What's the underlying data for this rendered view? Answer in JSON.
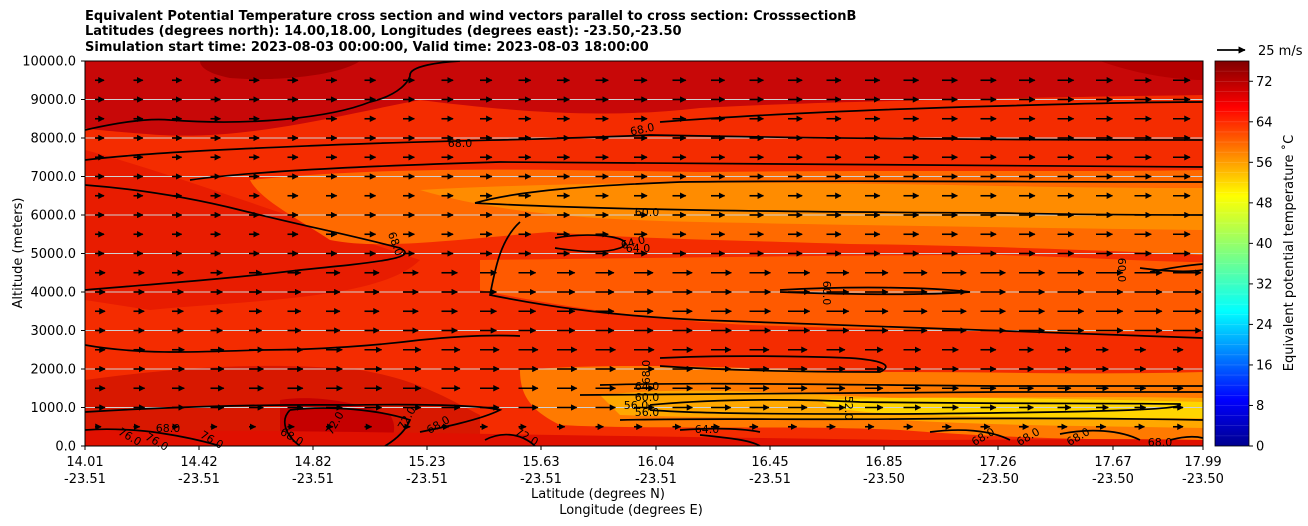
{
  "titles": [
    "Equivalent Potential Temperature cross section and wind vectors parallel to cross section: CrosssectionB",
    "Latitudes (degrees north): 14.00,18.00, Longitudes (degrees east): -23.50,-23.50",
    "Simulation start time: 2023-08-03 00:00:00, Valid time: 2023-08-03 18:00:00"
  ],
  "chart_data": {
    "type": "heatmap",
    "title": "Equivalent Potential Temperature cross section and wind vectors parallel to cross section: CrosssectionB",
    "ylabel": "Altitude (meters)",
    "xlabel_lines": [
      "Latitude (degrees N)",
      "Longitude (degrees E)"
    ],
    "ylim": [
      0,
      10000
    ],
    "yticks": [
      "0.0",
      "1000.0",
      "2000.0",
      "3000.0",
      "4000.0",
      "5000.0",
      "6000.0",
      "7000.0",
      "8000.0",
      "9000.0",
      "10000.0"
    ],
    "xticks": [
      {
        "lat": "14.01",
        "lon": "-23.51"
      },
      {
        "lat": "14.42",
        "lon": "-23.51"
      },
      {
        "lat": "14.82",
        "lon": "-23.51"
      },
      {
        "lat": "15.23",
        "lon": "-23.51"
      },
      {
        "lat": "15.63",
        "lon": "-23.51"
      },
      {
        "lat": "16.04",
        "lon": "-23.51"
      },
      {
        "lat": "16.45",
        "lon": "-23.51"
      },
      {
        "lat": "16.85",
        "lon": "-23.50"
      },
      {
        "lat": "17.26",
        "lon": "-23.50"
      },
      {
        "lat": "17.67",
        "lon": "-23.50"
      },
      {
        "lat": "17.99",
        "lon": "-23.50"
      }
    ],
    "colorbar": {
      "label": "Equivalent potential temperature ˚C",
      "ticks": [
        "0",
        "8",
        "16",
        "24",
        "32",
        "40",
        "48",
        "56",
        "64",
        "72"
      ],
      "range": [
        0,
        76
      ]
    },
    "quiver_key": "25 m/s",
    "contour_labels": [
      "68.0",
      "68.0",
      "60.0",
      "64.0",
      "64.0",
      "68.0",
      "60.0",
      "60.0",
      "68.0",
      "64.0",
      "60.0",
      "56.0",
      "56.0",
      "72.0",
      "72.0",
      "68.0",
      "64.0",
      "52.0",
      "68.0",
      "68.0",
      "68.0",
      "68.0",
      "68.0",
      "76.0",
      "76.0",
      "76.0",
      "72.0",
      "68.0"
    ]
  }
}
